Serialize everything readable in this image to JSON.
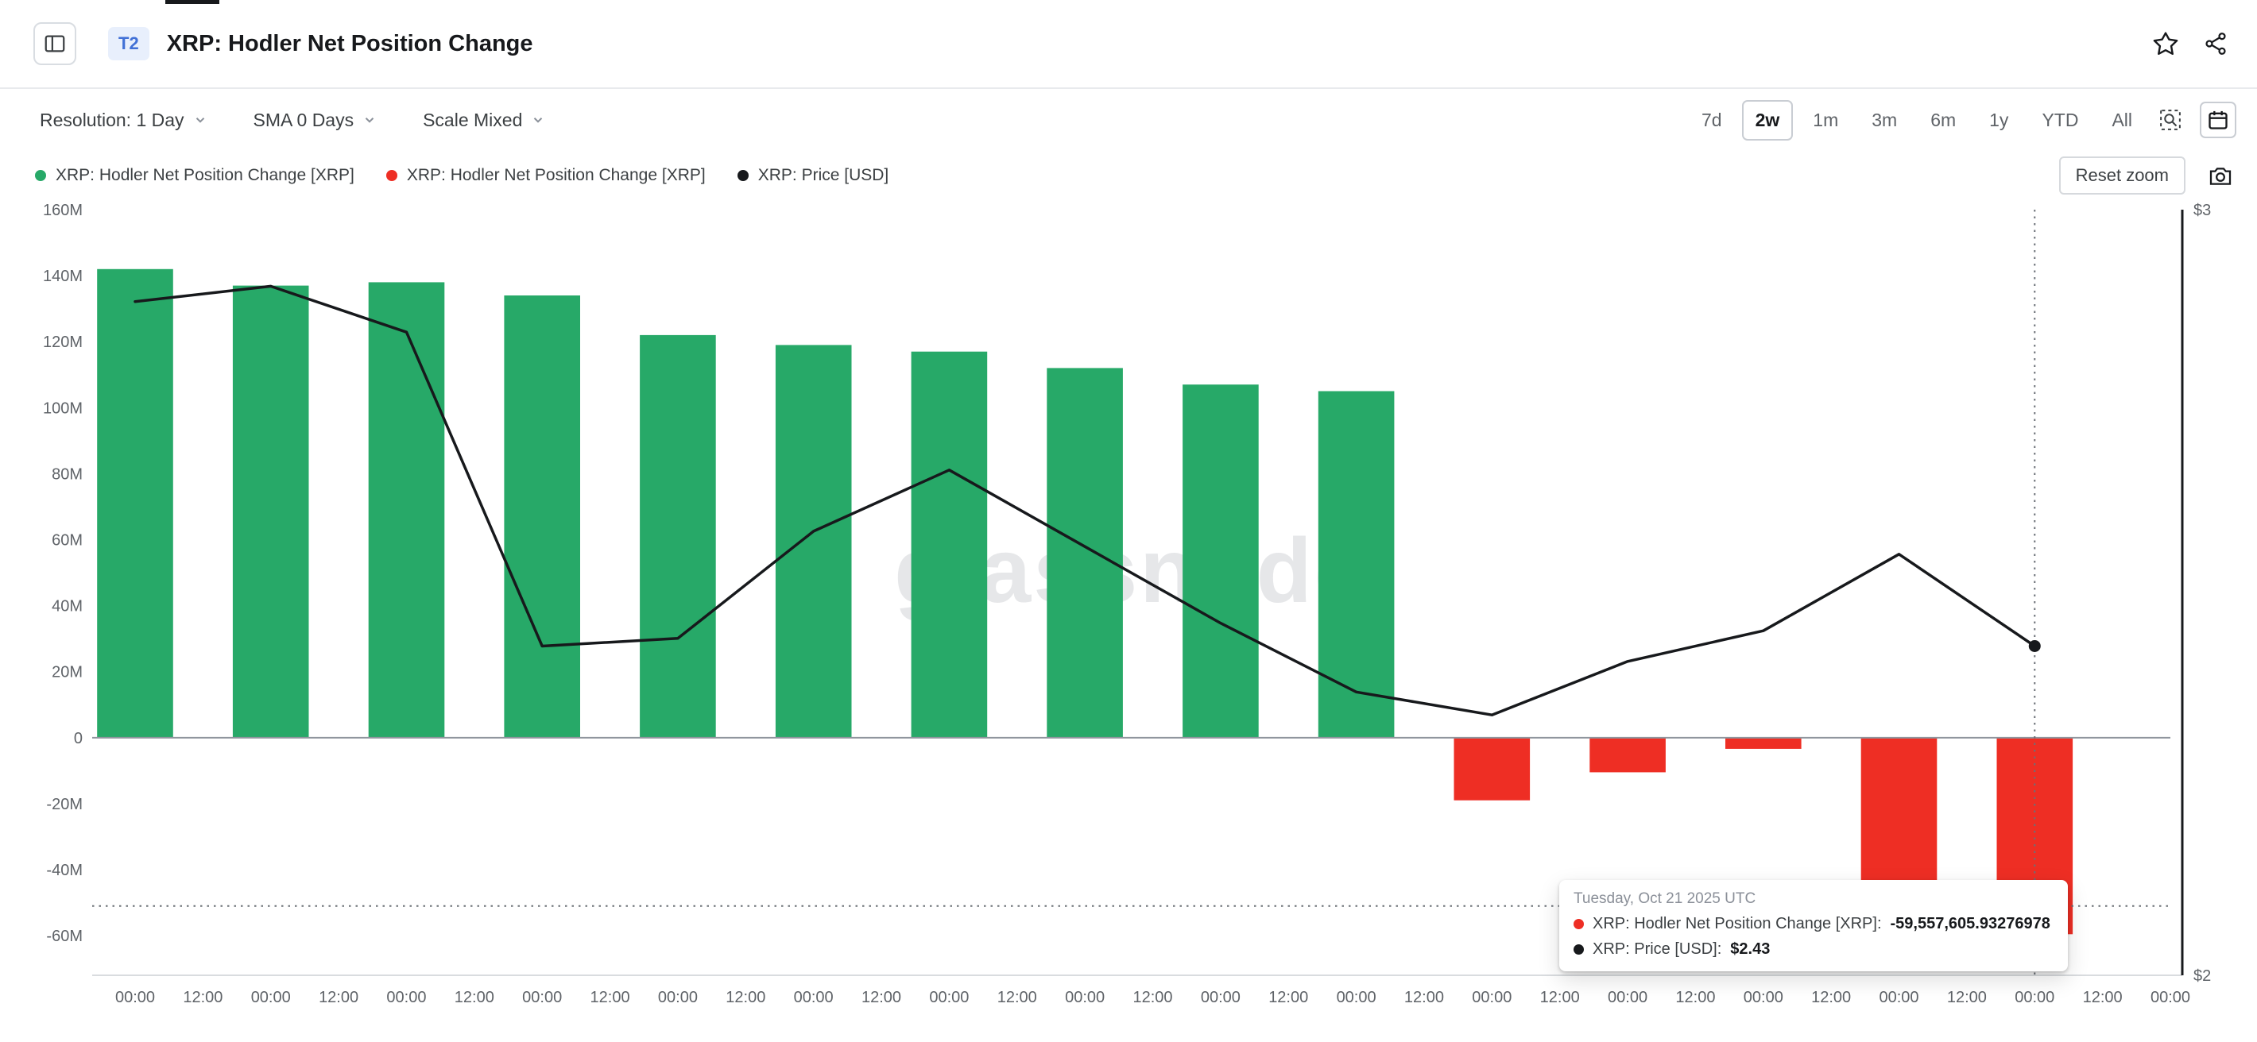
{
  "header": {
    "badge": "T2",
    "title": "XRP: Hodler Net Position Change"
  },
  "toolbar": {
    "resolution_label": "Resolution: 1 Day",
    "sma_label": "SMA 0 Days",
    "scale_label": "Scale Mixed",
    "ranges": [
      "7d",
      "2w",
      "1m",
      "3m",
      "6m",
      "1y",
      "YTD",
      "All"
    ],
    "selected_range": "2w"
  },
  "legend": {
    "items": [
      {
        "label": "XRP: Hodler Net Position Change [XRP]",
        "color": "#27a968"
      },
      {
        "label": "XRP: Hodler Net Position Change [XRP]",
        "color": "#ee2e24"
      },
      {
        "label": "XRP: Price [USD]",
        "color": "#17191c"
      }
    ],
    "reset_zoom_label": "Reset zoom"
  },
  "watermark": "glassnode",
  "tooltip": {
    "date": "Tuesday, Oct 21 2025 UTC",
    "rows": [
      {
        "color": "#ee2e24",
        "label": "XRP: Hodler Net Position Change [XRP]:",
        "value": "-59,557,605.93276978"
      },
      {
        "color": "#17191c",
        "label": "XRP: Price [USD]:",
        "value": "$2.43"
      }
    ]
  },
  "chart_data": {
    "type": "mixed",
    "title": "XRP: Hodler Net Position Change",
    "x_tick_labels": [
      "00:00",
      "12:00",
      "00:00",
      "12:00",
      "00:00",
      "12:00",
      "00:00",
      "12:00",
      "00:00",
      "12:00",
      "00:00",
      "12:00",
      "00:00",
      "12:00",
      "00:00",
      "12:00",
      "00:00",
      "12:00",
      "00:00",
      "12:00",
      "00:00",
      "12:00",
      "00:00",
      "12:00",
      "00:00",
      "12:00",
      "00:00",
      "12:00",
      "00:00",
      "12:00",
      "00:00"
    ],
    "series": [
      {
        "name": "XRP: Hodler Net Position Change [XRP]",
        "type": "column",
        "axis": "left",
        "positive_color": "#27a968",
        "negative_color": "#ee2e24",
        "values": [
          142000000,
          137000000,
          138000000,
          134000000,
          122000000,
          119000000,
          117000000,
          112000000,
          107000000,
          105000000,
          -19000000,
          -10500000,
          -3400000,
          -51500000,
          -59557605.93276978
        ]
      },
      {
        "name": "XRP: Price [USD]",
        "type": "line",
        "axis": "right",
        "color": "#17191c",
        "values": [
          2.88,
          2.9,
          2.84,
          2.43,
          2.44,
          2.58,
          2.66,
          2.56,
          2.46,
          2.37,
          2.34,
          2.41,
          2.45,
          2.55,
          2.43
        ]
      }
    ],
    "left_axis": {
      "labels": [
        "160M",
        "140M",
        "120M",
        "100M",
        "80M",
        "60M",
        "40M",
        "20M",
        "0",
        "-20M",
        "-40M",
        "-60M"
      ],
      "tick_values": [
        160000000,
        140000000,
        120000000,
        100000000,
        80000000,
        60000000,
        40000000,
        20000000,
        0,
        -20000000,
        -40000000,
        -60000000
      ],
      "max": 160000000,
      "min": -72000000
    },
    "right_axis": {
      "labels": [
        "$3",
        "$2"
      ],
      "tick_values": [
        3,
        2
      ],
      "max": 3,
      "min": 2
    },
    "hovered_index": 14,
    "crosshair_value_left": -51000000,
    "grid": false,
    "legend_position": "top-left"
  }
}
